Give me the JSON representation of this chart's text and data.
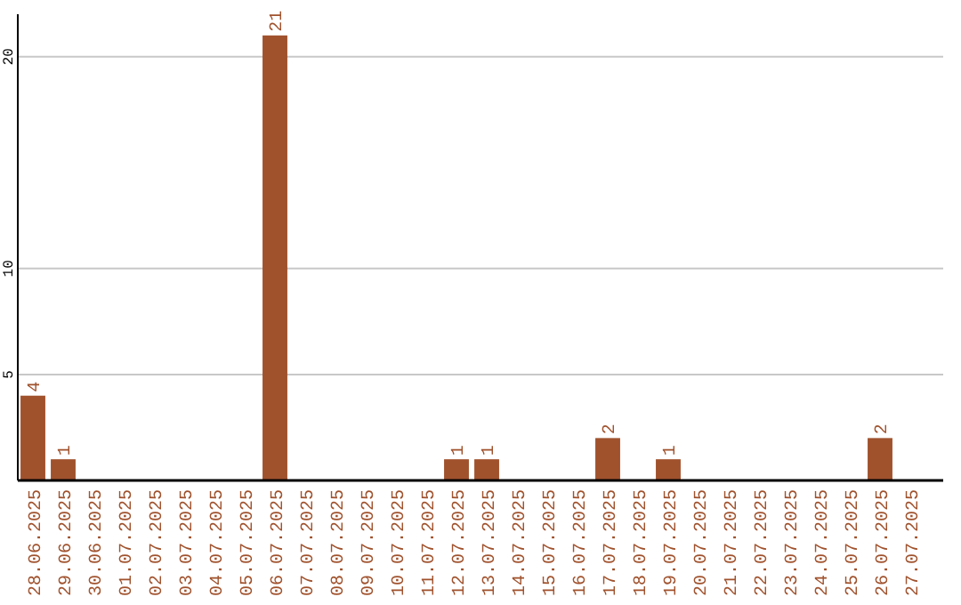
{
  "chart_data": {
    "type": "bar",
    "categories": [
      "28.06.2025",
      "29.06.2025",
      "30.06.2025",
      "01.07.2025",
      "02.07.2025",
      "03.07.2025",
      "04.07.2025",
      "05.07.2025",
      "06.07.2025",
      "07.07.2025",
      "08.07.2025",
      "09.07.2025",
      "10.07.2025",
      "11.07.2025",
      "12.07.2025",
      "13.07.2025",
      "14.07.2025",
      "15.07.2025",
      "16.07.2025",
      "17.07.2025",
      "18.07.2025",
      "19.07.2025",
      "20.07.2025",
      "21.07.2025",
      "22.07.2025",
      "23.07.2025",
      "24.07.2025",
      "25.07.2025",
      "26.07.2025",
      "27.07.2025"
    ],
    "values": [
      4,
      1,
      0,
      0,
      0,
      0,
      0,
      0,
      21,
      0,
      0,
      0,
      0,
      0,
      1,
      1,
      0,
      0,
      0,
      2,
      0,
      1,
      0,
      0,
      0,
      0,
      0,
      0,
      2,
      0
    ],
    "value_labels": [
      "4",
      "1",
      null,
      null,
      null,
      null,
      null,
      null,
      "21",
      null,
      null,
      null,
      null,
      null,
      "1",
      "1",
      null,
      null,
      null,
      "2",
      null,
      "1",
      null,
      null,
      null,
      null,
      null,
      null,
      "2",
      null
    ],
    "color": "#a0522d",
    "ylim": [
      0,
      22
    ],
    "yticks": [
      5,
      10,
      20
    ],
    "grid": "y"
  }
}
